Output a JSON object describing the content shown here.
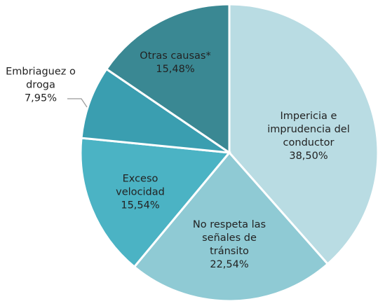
{
  "chart_data": {
    "type": "pie",
    "categories": [
      "Impericia e imprudencia del conductor",
      "No respeta las señales de tránsito",
      "Exceso velocidad",
      "Embriaguez o droga",
      "Otras causas*"
    ],
    "values": [
      38.5,
      22.54,
      15.54,
      7.95,
      15.48
    ],
    "value_labels": [
      "38,50%",
      "22,54%",
      "15,54%",
      "7,95%",
      "15,48%"
    ],
    "colors": [
      "#b9dce3",
      "#8fcad4",
      "#4bb3c4",
      "#3a9eb0",
      "#3a8893"
    ]
  }
}
